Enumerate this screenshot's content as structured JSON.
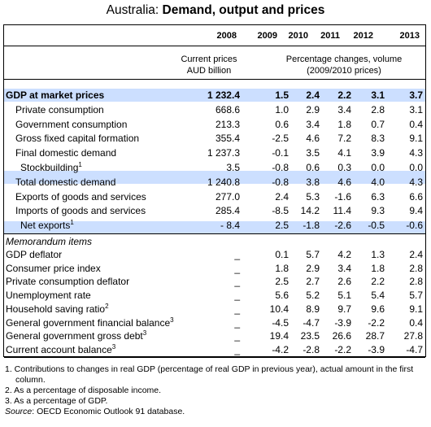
{
  "title": {
    "prefix": "Australia: ",
    "main": "Demand, output and prices"
  },
  "header": {
    "years": [
      "2008",
      "2009",
      "2010",
      "2011",
      "2012",
      "2013"
    ],
    "current_prices_line1": "Current prices",
    "current_prices_line2": "AUD billion",
    "pct_line1": "Percentage changes, volume",
    "pct_line2": "(2009/2010 prices)"
  },
  "rows": [
    {
      "label": "GDP at market prices",
      "sup": "",
      "values": [
        "1 232.4",
        "1.5",
        "2.4",
        "2.2",
        "3.1",
        "3.7"
      ],
      "bold": true,
      "indent": 0
    },
    {
      "label": "Private consumption",
      "sup": "",
      "values": [
        "668.6",
        "1.0",
        "2.9",
        "3.4",
        "2.8",
        "3.1"
      ],
      "indent": 1
    },
    {
      "label": "Government consumption",
      "sup": "",
      "values": [
        "213.3",
        "0.6",
        "3.4",
        "1.8",
        "0.7",
        "0.4"
      ],
      "indent": 1
    },
    {
      "label": "Gross fixed capital formation",
      "sup": "",
      "values": [
        "355.4",
        "-2.5",
        "4.6",
        "7.2",
        "8.3",
        "9.1"
      ],
      "indent": 1
    },
    {
      "label": "Final domestic demand",
      "sup": "",
      "values": [
        "1 237.3",
        "-0.1",
        "3.5",
        "4.1",
        "3.9",
        "4.3"
      ],
      "indent": 1
    },
    {
      "label": "Stockbuilding",
      "sup": "1",
      "values": [
        "3.5",
        "-0.8",
        "0.6",
        "0.3",
        "0.0",
        "0.0"
      ],
      "indent": 2
    },
    {
      "label": "Total domestic demand",
      "sup": "",
      "values": [
        "1 240.8",
        "-0.8",
        "3.8",
        "4.6",
        "4.0",
        "4.3"
      ],
      "indent": 1
    },
    {
      "label": "Exports of goods and services",
      "sup": "",
      "values": [
        "277.0",
        "2.4",
        "5.3",
        "-1.6",
        "6.3",
        "6.6"
      ],
      "indent": 1
    },
    {
      "label": "Imports of goods and services",
      "sup": "",
      "values": [
        "285.4",
        "-8.5",
        "14.2",
        "11.4",
        "9.3",
        "9.4"
      ],
      "indent": 1
    },
    {
      "label": "Net exports",
      "sup": "1",
      "values": [
        "- 8.4",
        "2.5",
        "-1.8",
        "-2.6",
        "-0.5",
        "-0.6"
      ],
      "indent": 2
    }
  ],
  "memo_title": "Memorandum items",
  "memo_rows": [
    {
      "label": "GDP deflator",
      "sup": "",
      "values": [
        "_",
        "0.1",
        "5.7",
        "4.2",
        "1.3",
        "2.4"
      ]
    },
    {
      "label": "Consumer price index",
      "sup": "",
      "values": [
        "_",
        "1.8",
        "2.9",
        "3.4",
        "1.8",
        "2.8"
      ]
    },
    {
      "label": "Private consumption deflator",
      "sup": "",
      "values": [
        "_",
        "2.5",
        "2.7",
        "2.6",
        "2.2",
        "2.8"
      ]
    },
    {
      "label": "Unemployment rate",
      "sup": "",
      "values": [
        "_",
        "5.6",
        "5.2",
        "5.1",
        "5.4",
        "5.7"
      ]
    },
    {
      "label": "Household saving ratio",
      "sup": "2",
      "values": [
        "_",
        "10.4",
        "8.9",
        "9.7",
        "9.6",
        "9.1"
      ]
    },
    {
      "label": "General government financial balance",
      "sup": "3",
      "values": [
        "_",
        "-4.5",
        "-4.7",
        "-3.9",
        "-2.2",
        "0.4"
      ]
    },
    {
      "label": "General government gross debt",
      "sup": "3",
      "values": [
        "_",
        "19.4",
        "23.5",
        "26.6",
        "28.7",
        "27.8"
      ]
    },
    {
      "label": "Current account balance",
      "sup": "3",
      "values": [
        "_",
        "-4.2",
        "-2.8",
        "-2.2",
        "-3.9",
        "-4.7"
      ]
    }
  ],
  "footnotes": [
    "1. Contributions to changes in real GDP (percentage of real GDP in previous year), actual amount in the first",
    "column.",
    "2. As a percentage of disposable income.",
    "3. As a percentage of GDP."
  ],
  "source": {
    "label": "Source",
    "text": ": OECD Economic Outlook 91 database."
  },
  "colors": {
    "highlight_band": "#ccdfff"
  }
}
